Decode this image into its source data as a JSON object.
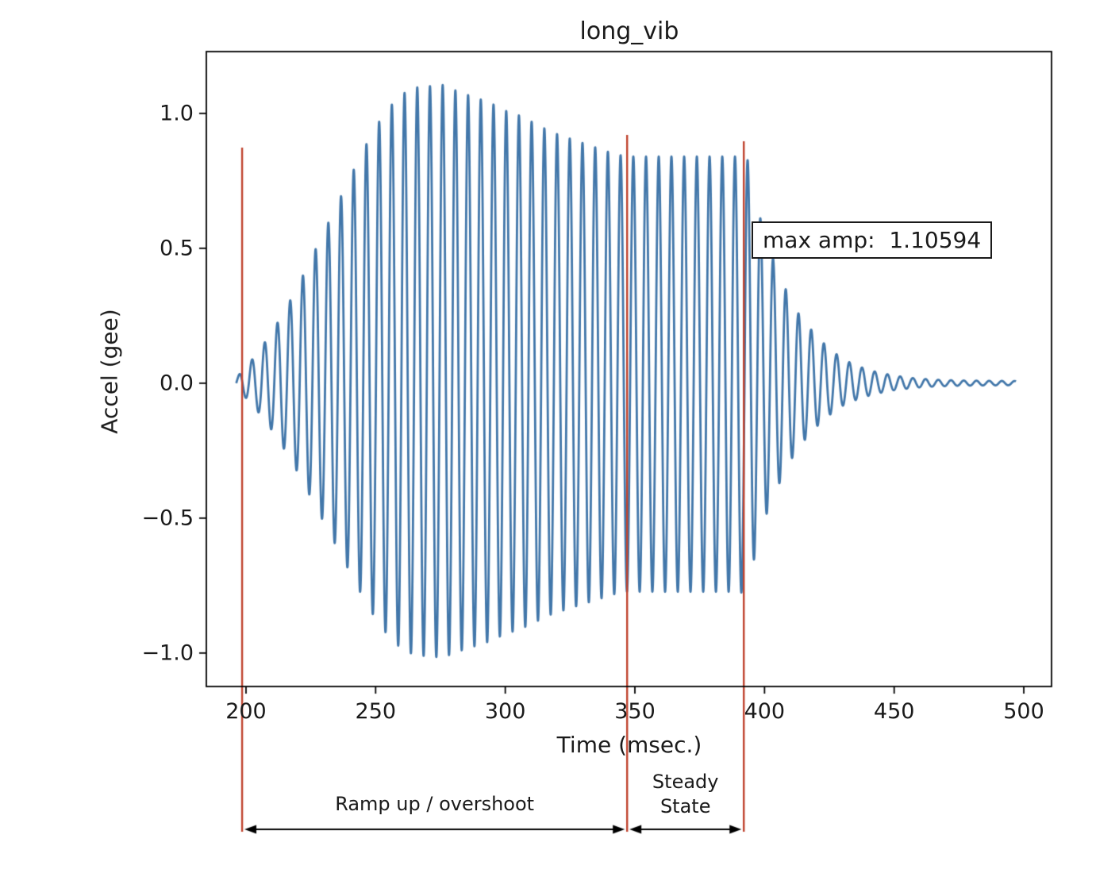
{
  "page": {
    "background": "#ffffff"
  },
  "chart_data": {
    "type": "line",
    "title": "long_vib",
    "xlabel": "Time (msec.)",
    "ylabel": "Accel (gee)",
    "xlim": [
      184.7,
      510.7
    ],
    "ylim": [
      -1.124,
      1.229
    ],
    "xticks": [
      200,
      250,
      300,
      350,
      400,
      450,
      500
    ],
    "xtick_labels": [
      "200",
      "250",
      "300",
      "350",
      "400",
      "450",
      "500"
    ],
    "yticks": [
      -1.0,
      -0.5,
      0.0,
      0.5,
      1.0
    ],
    "ytick_labels": [
      "−1.0",
      "−0.5",
      "0.0",
      "0.5",
      "1.0"
    ],
    "grid": false,
    "legend": "none",
    "line_color": "#4277aa",
    "line_width": 2.8,
    "signal": {
      "t_start": 196.2,
      "t_end": 497,
      "dt": 0.05,
      "cycles_per_ms": 0.204,
      "neg_scale": 0.92,
      "envelope": [
        [
          196.2,
          0.02
        ],
        [
          200,
          0.06
        ],
        [
          205,
          0.12
        ],
        [
          210,
          0.19
        ],
        [
          215,
          0.27
        ],
        [
          220,
          0.36
        ],
        [
          225,
          0.46
        ],
        [
          230,
          0.56
        ],
        [
          235,
          0.66
        ],
        [
          240,
          0.76
        ],
        [
          245,
          0.86
        ],
        [
          250,
          0.95
        ],
        [
          255,
          1.02
        ],
        [
          260,
          1.07
        ],
        [
          265,
          1.095
        ],
        [
          270,
          1.1
        ],
        [
          276,
          1.105
        ],
        [
          282,
          1.08
        ],
        [
          288,
          1.06
        ],
        [
          294,
          1.04
        ],
        [
          300,
          1.01
        ],
        [
          306,
          0.99
        ],
        [
          312,
          0.96
        ],
        [
          318,
          0.93
        ],
        [
          324,
          0.91
        ],
        [
          330,
          0.89
        ],
        [
          336,
          0.87
        ],
        [
          342,
          0.85
        ],
        [
          347,
          0.84
        ],
        [
          390,
          0.84
        ],
        [
          393,
          0.85
        ],
        [
          397,
          0.66
        ],
        [
          401,
          0.52
        ],
        [
          405,
          0.42
        ],
        [
          409,
          0.33
        ],
        [
          413,
          0.26
        ],
        [
          417,
          0.21
        ],
        [
          421,
          0.165
        ],
        [
          426,
          0.12
        ],
        [
          431,
          0.085
        ],
        [
          437,
          0.06
        ],
        [
          443,
          0.042
        ],
        [
          450,
          0.028
        ],
        [
          458,
          0.018
        ],
        [
          466,
          0.013
        ],
        [
          475,
          0.01
        ],
        [
          485,
          0.009
        ],
        [
          497,
          0.008
        ]
      ]
    },
    "annotation": {
      "text": "max amp:  1.10594",
      "x": 395,
      "y": 0.6
    },
    "max_amp": 1.10594,
    "vlines": {
      "color": "#c0432e",
      "t_values": [
        198.5,
        347,
        392
      ]
    },
    "regions": [
      {
        "label": "Ramp up / overshoot",
        "t_start": 198.5,
        "t_end": 347
      },
      {
        "label": "Steady State",
        "t_start": 347,
        "t_end": 392
      }
    ]
  }
}
